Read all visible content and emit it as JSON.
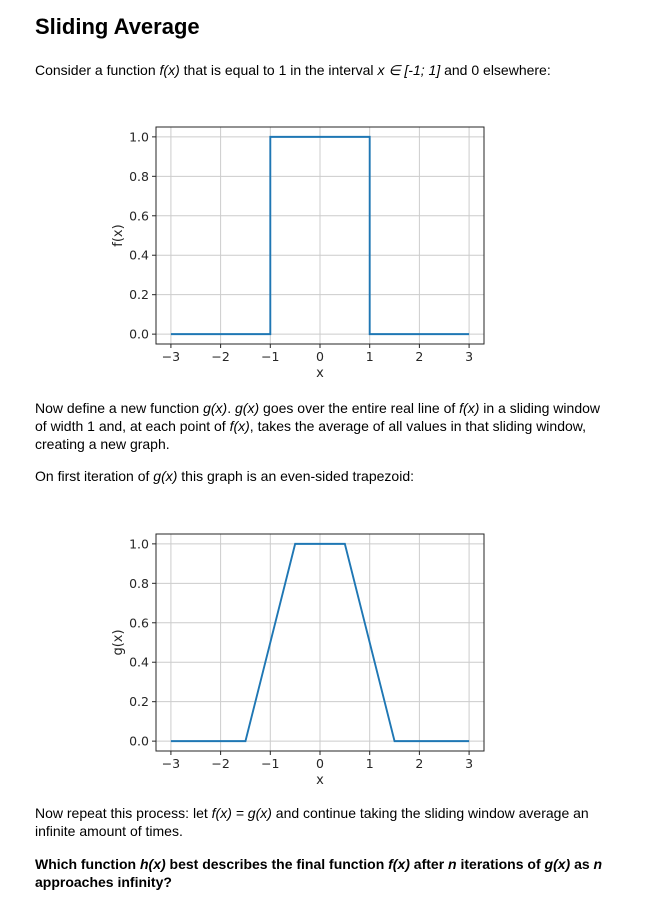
{
  "page": {
    "title": "Sliding Average"
  },
  "paragraphs": {
    "intro": [
      {
        "t": "Consider a function "
      },
      {
        "t": "f(x)",
        "i": true
      },
      {
        "t": " that is equal to 1 in the interval "
      },
      {
        "t": "x ∈ [-1; 1]",
        "i": true
      },
      {
        "t": " and 0 elsewhere:"
      }
    ],
    "define_g": [
      {
        "t": "Now define a new function "
      },
      {
        "t": "g(x)",
        "i": true
      },
      {
        "t": ". "
      },
      {
        "t": "g(x)",
        "i": true
      },
      {
        "t": " goes over the entire real line of "
      },
      {
        "t": "f(x)",
        "i": true
      },
      {
        "t": " in a sliding window of width 1 and, at each point of "
      },
      {
        "t": "f(x)",
        "i": true
      },
      {
        "t": ", takes the average of all values in that sliding window, creating a new graph."
      }
    ],
    "first_iteration": [
      {
        "t": "On first iteration of "
      },
      {
        "t": "g(x)",
        "i": true
      },
      {
        "t": " this graph is an even-sided trapezoid:"
      }
    ],
    "repeat": [
      {
        "t": "Now repeat this process: let "
      },
      {
        "t": "f(x) = g(x)",
        "i": true
      },
      {
        "t": " and continue taking the sliding window average an infinite amount of times."
      }
    ],
    "question": [
      {
        "t": "Which function ",
        "b": true
      },
      {
        "t": "h(x)",
        "b": true,
        "i": true
      },
      {
        "t": " best describes the final function ",
        "b": true
      },
      {
        "t": "f(x)",
        "b": true,
        "i": true
      },
      {
        "t": " after ",
        "b": true
      },
      {
        "t": "n",
        "b": true,
        "i": true
      },
      {
        "t": " iterations of ",
        "b": true
      },
      {
        "t": "g(x)",
        "b": true,
        "i": true
      },
      {
        "t": " as ",
        "b": true
      },
      {
        "t": "n",
        "b": true,
        "i": true
      },
      {
        "t": " approaches infinity?",
        "b": true
      }
    ]
  },
  "chart_data": [
    {
      "type": "line",
      "title": "",
      "xlabel": "x",
      "ylabel": "f(x)",
      "xlim": [
        -3.3,
        3.3
      ],
      "ylim": [
        -0.05,
        1.05
      ],
      "grid": true,
      "legend": false,
      "line_color": "#1f77b4",
      "grid_color": "#cccccc",
      "axis_color": "#262626",
      "xticks": [
        {
          "v": -3,
          "l": "−3"
        },
        {
          "v": -2,
          "l": "−2"
        },
        {
          "v": -1,
          "l": "−1"
        },
        {
          "v": 0,
          "l": "0"
        },
        {
          "v": 1,
          "l": "1"
        },
        {
          "v": 2,
          "l": "2"
        },
        {
          "v": 3,
          "l": "3"
        }
      ],
      "yticks": [
        {
          "v": 0.0,
          "l": "0.0"
        },
        {
          "v": 0.2,
          "l": "0.2"
        },
        {
          "v": 0.4,
          "l": "0.4"
        },
        {
          "v": 0.6,
          "l": "0.6"
        },
        {
          "v": 0.8,
          "l": "0.8"
        },
        {
          "v": 1.0,
          "l": "1.0"
        }
      ],
      "points": [
        [
          -3,
          0
        ],
        [
          -1,
          0
        ],
        [
          -1,
          1
        ],
        [
          1,
          1
        ],
        [
          1,
          0
        ],
        [
          3,
          0
        ]
      ]
    },
    {
      "type": "line",
      "title": "",
      "xlabel": "x",
      "ylabel": "g(x)",
      "xlim": [
        -3.3,
        3.3
      ],
      "ylim": [
        -0.05,
        1.05
      ],
      "grid": true,
      "legend": false,
      "line_color": "#1f77b4",
      "grid_color": "#cccccc",
      "axis_color": "#262626",
      "xticks": [
        {
          "v": -3,
          "l": "−3"
        },
        {
          "v": -2,
          "l": "−2"
        },
        {
          "v": -1,
          "l": "−1"
        },
        {
          "v": 0,
          "l": "0"
        },
        {
          "v": 1,
          "l": "1"
        },
        {
          "v": 2,
          "l": "2"
        },
        {
          "v": 3,
          "l": "3"
        }
      ],
      "yticks": [
        {
          "v": 0.0,
          "l": "0.0"
        },
        {
          "v": 0.2,
          "l": "0.2"
        },
        {
          "v": 0.4,
          "l": "0.4"
        },
        {
          "v": 0.6,
          "l": "0.6"
        },
        {
          "v": 0.8,
          "l": "0.8"
        },
        {
          "v": 1.0,
          "l": "1.0"
        }
      ],
      "points": [
        [
          -3,
          0
        ],
        [
          -1.5,
          0
        ],
        [
          -0.5,
          1
        ],
        [
          0.5,
          1
        ],
        [
          1.5,
          0
        ],
        [
          3,
          0
        ]
      ]
    }
  ]
}
